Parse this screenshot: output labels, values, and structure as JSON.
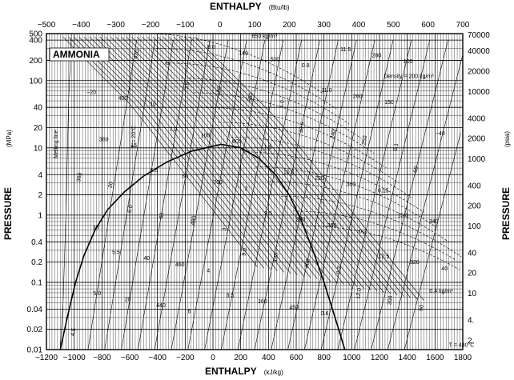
{
  "chart_data": {
    "type": "line",
    "title": "AMMONIA",
    "x_bottom": {
      "label": "ENTHALPY",
      "unit": "(kJ/kg)",
      "range": [
        -1200,
        1800
      ],
      "ticks": [
        "−1200",
        "−1000",
        "−800",
        "−600",
        "−400",
        "−200",
        "0",
        "200",
        "400",
        "600",
        "800",
        "1000",
        "1200",
        "1400",
        "1600",
        "1800"
      ]
    },
    "x_top": {
      "label": "ENTHALPY",
      "unit": "(Btu/lb)",
      "range": [
        -500,
        700
      ],
      "ticks": [
        "−500",
        "−400",
        "−300",
        "−200",
        "−100",
        "0",
        "100",
        "200",
        "300",
        "400",
        "500",
        "600",
        "700"
      ]
    },
    "y_left": {
      "label": "PRESSURE",
      "unit": "(MPa)",
      "scale": "log",
      "range": [
        0.01,
        500
      ],
      "ticks": [
        "500",
        "400",
        "200",
        "100",
        "40",
        "20",
        "10",
        "4",
        "2",
        "1",
        "0.4",
        "0.2",
        "0.1",
        "0.04",
        "0.02",
        "0.01"
      ]
    },
    "y_right": {
      "label": "PRESSURE",
      "unit": "(psia)",
      "scale": "log",
      "ticks": [
        "70000",
        "40000",
        "20000",
        "10000",
        "4000",
        "2000",
        "1000",
        "400",
        "200",
        "100",
        "40",
        "20",
        "10",
        "4.",
        "2."
      ]
    },
    "grid": true,
    "annotations": [
      "Density = 200 kg/m³",
      "650 kg/m³",
      "0.4 kg/m³",
      "T = 20°C",
      "T = 480°C",
      "4.5",
      "5.0",
      "5.5",
      "6.0",
      "6.5",
      "7.0",
      "7.5",
      "8.0",
      "8.5",
      "9.0",
      "9.5",
      "10.0",
      "10.5",
      "11.0",
      "11.5",
      "12.0",
      "12.5",
      "13.0",
      "−60",
      "−40",
      "−20",
      "0",
      "20",
      "40",
      "60",
      "80",
      "100",
      "120",
      "140",
      "160",
      "180",
      "200",
      "220",
      "240",
      "260",
      "280",
      "300",
      "320",
      "340",
      "360",
      "380",
      "400",
      "420",
      "440",
      "460",
      "480",
      "700",
      "600",
      "550",
      "500",
      "450",
      "400",
      "350",
      "300",
      "250",
      "150",
      "100",
      "60",
      "40",
      "30",
      "20",
      "15",
      "10",
      "8",
      "6",
      "4",
      "3",
      "2",
      "1.5",
      "1.0",
      "0.8",
      "0.6",
      "0.3",
      "0.2",
      "0.15",
      "0.1",
      "Melting line"
    ]
  }
}
